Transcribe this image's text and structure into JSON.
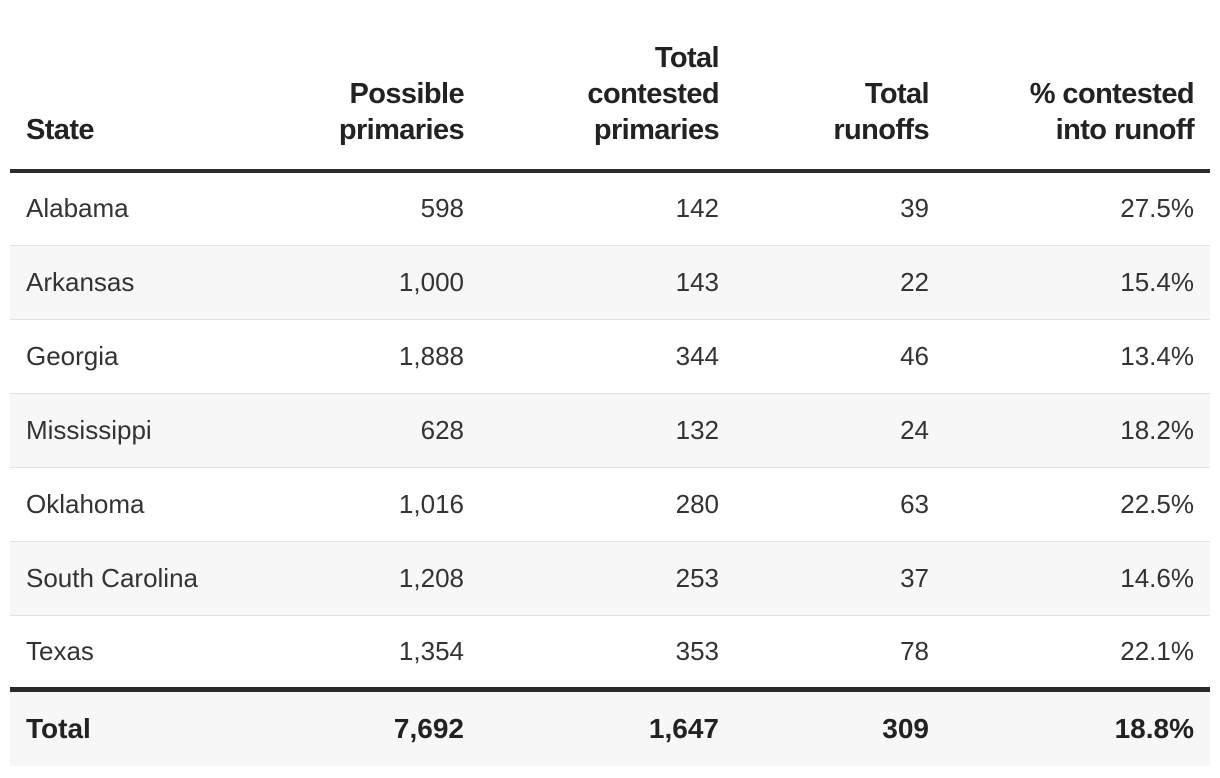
{
  "chart_data": {
    "type": "table",
    "columns": [
      "State",
      "Possible primaries",
      "Total contested primaries",
      "Total runoffs",
      "% contested into runoff"
    ],
    "header_lines": [
      [
        "State"
      ],
      [
        "Possible",
        "primaries"
      ],
      [
        "Total",
        "contested",
        "primaries"
      ],
      [
        "Total",
        "runoffs"
      ],
      [
        "% contested",
        "into runoff"
      ]
    ],
    "rows": [
      {
        "state": "Alabama",
        "possible": "598",
        "contested": "142",
        "runoffs": "39",
        "pct": "27.5%"
      },
      {
        "state": "Arkansas",
        "possible": "1,000",
        "contested": "143",
        "runoffs": "22",
        "pct": "15.4%"
      },
      {
        "state": "Georgia",
        "possible": "1,888",
        "contested": "344",
        "runoffs": "46",
        "pct": "13.4%"
      },
      {
        "state": "Mississippi",
        "possible": "628",
        "contested": "132",
        "runoffs": "24",
        "pct": "18.2%"
      },
      {
        "state": "Oklahoma",
        "possible": "1,016",
        "contested": "280",
        "runoffs": "63",
        "pct": "22.5%"
      },
      {
        "state": "South Carolina",
        "possible": "1,208",
        "contested": "253",
        "runoffs": "37",
        "pct": "14.6%"
      },
      {
        "state": "Texas",
        "possible": "1,354",
        "contested": "353",
        "runoffs": "78",
        "pct": "22.1%"
      }
    ],
    "total": {
      "state": "Total",
      "possible": "7,692",
      "contested": "1,647",
      "runoffs": "309",
      "pct": "18.8%"
    }
  }
}
